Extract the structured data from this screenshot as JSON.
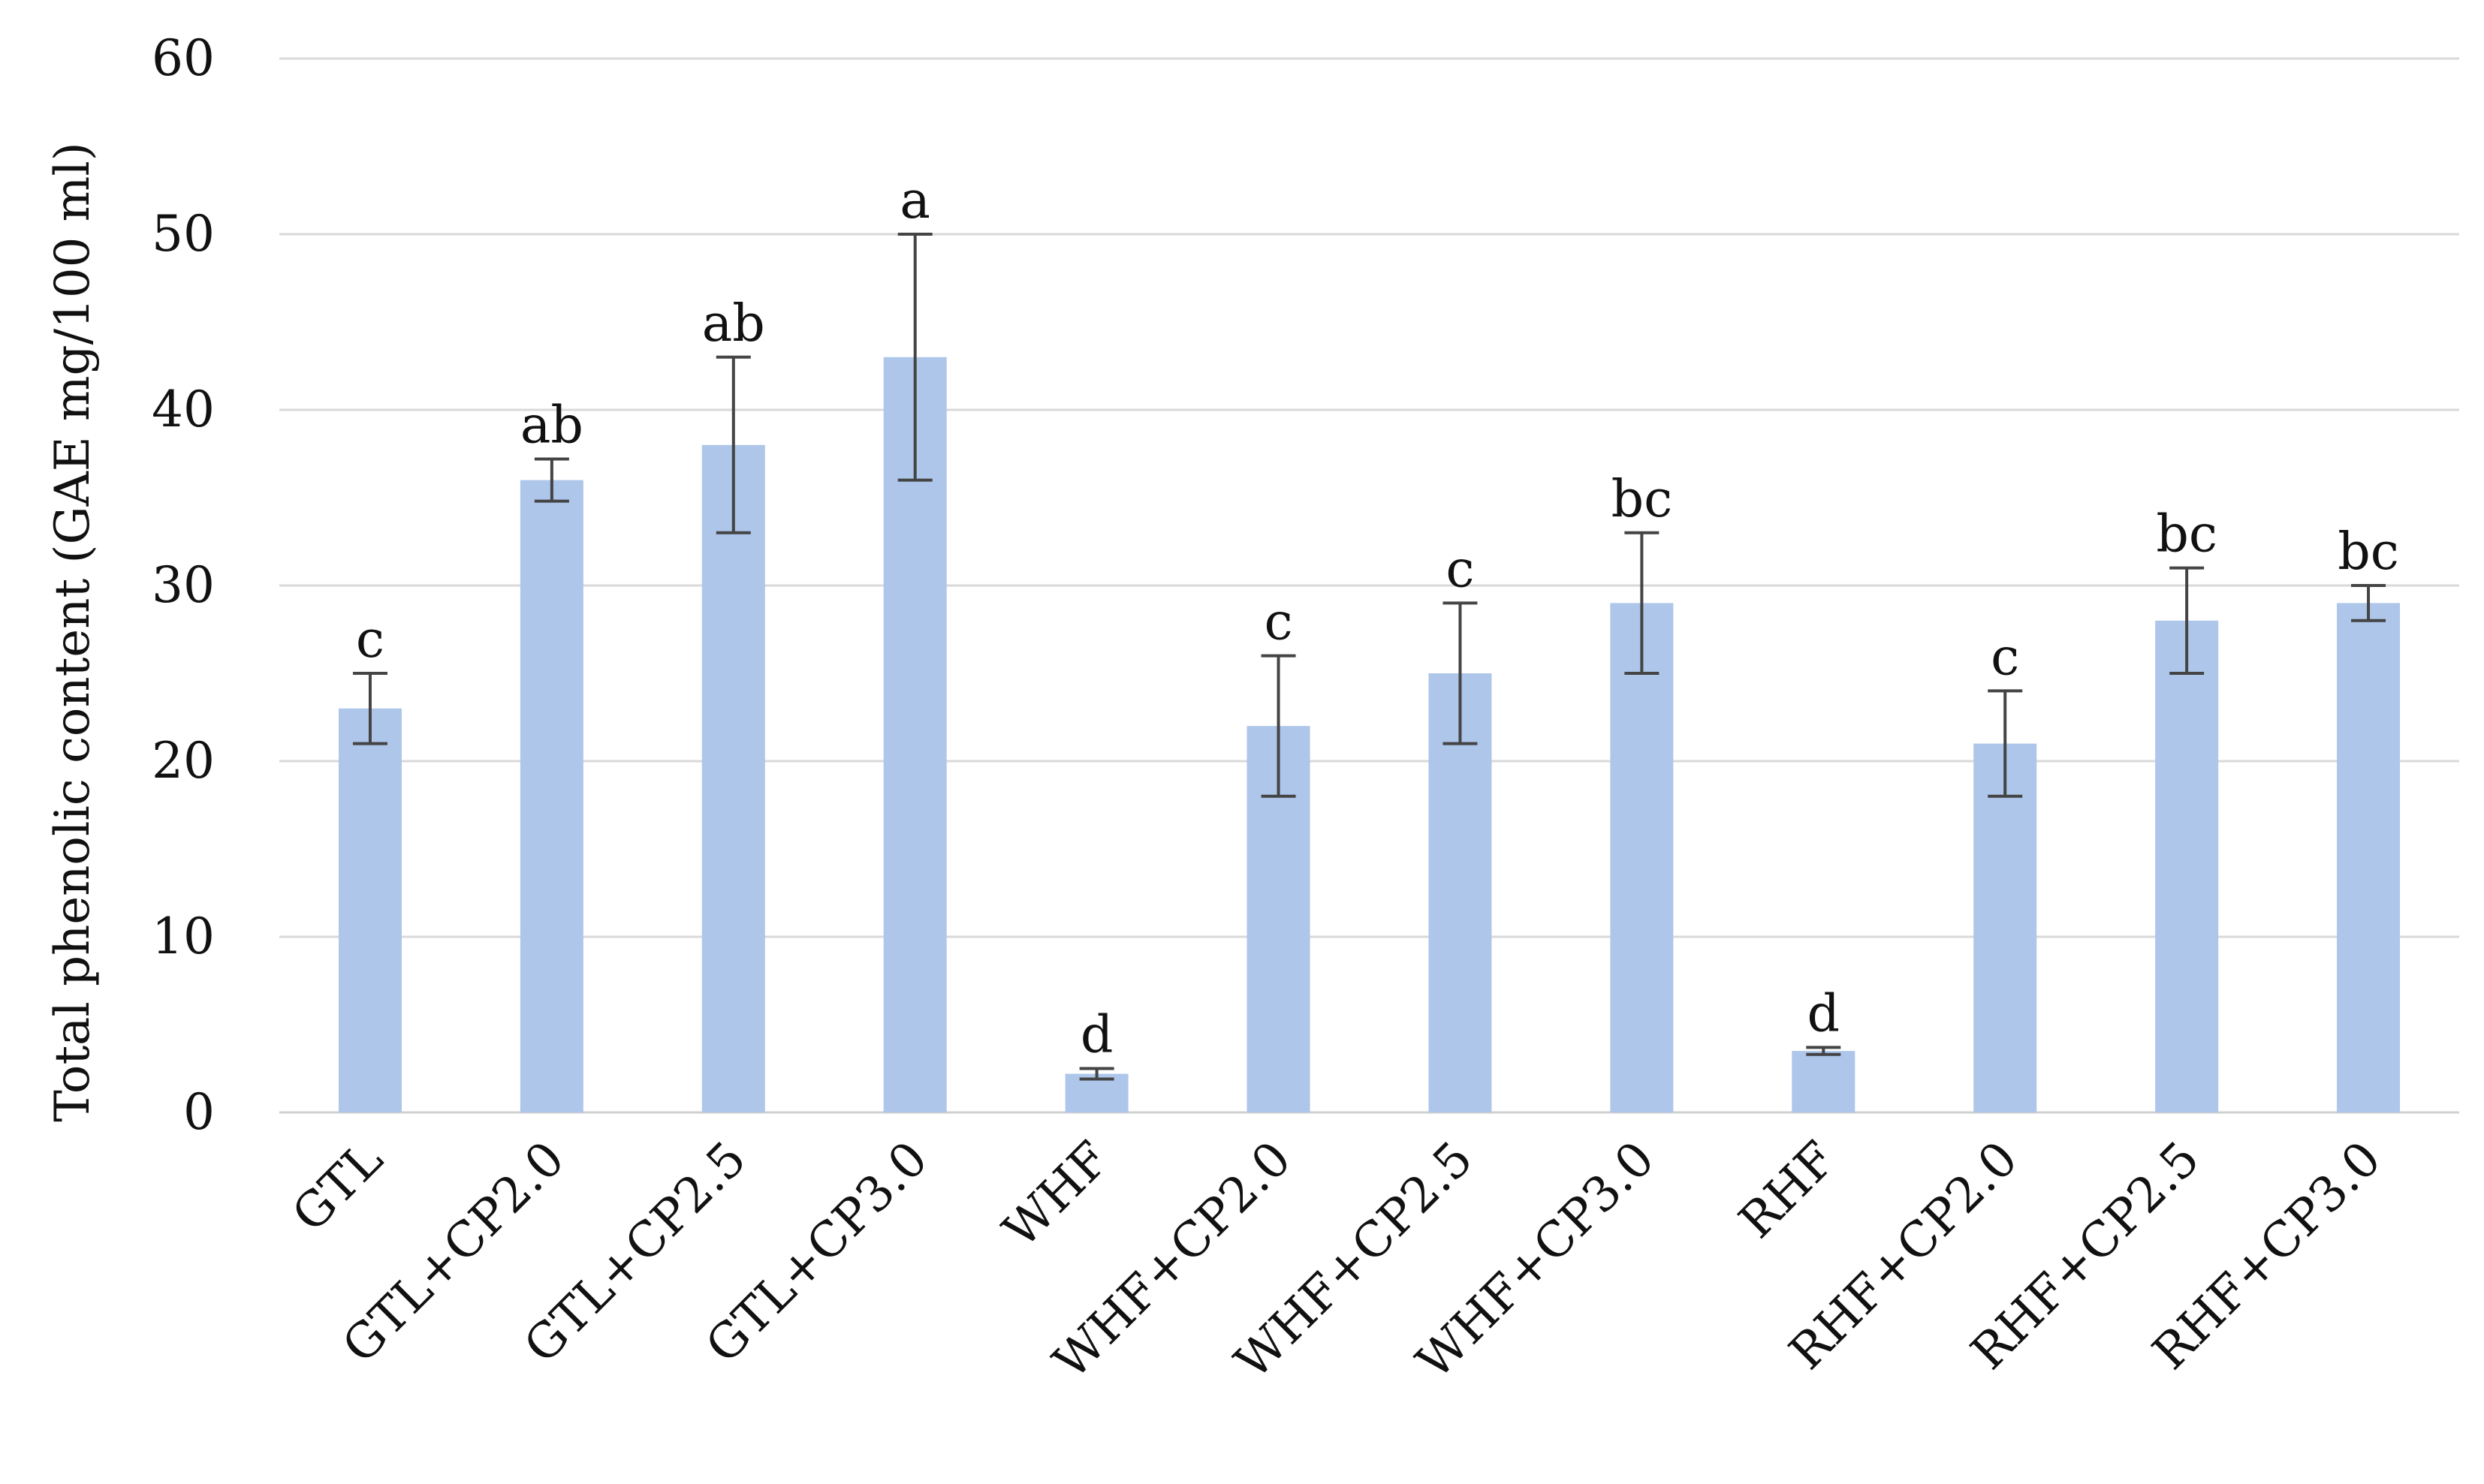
{
  "chart_data": {
    "type": "bar",
    "title": "",
    "xlabel": "",
    "ylabel": "Total phenolic content (GAE mg/100 ml)",
    "ylim": [
      0,
      60
    ],
    "yticks": [
      0,
      10,
      20,
      30,
      40,
      50,
      60
    ],
    "grid": true,
    "legend": "none",
    "bar_color": "#adc6ea",
    "error_bar_color": "#444444",
    "categories": [
      "GTL",
      "GTL+CP2.0",
      "GTL+CP2.5",
      "GTL+CP3.0",
      "WHF",
      "WHF+CP2.0",
      "WHF+CP2.5",
      "WHF+CP3.0",
      "RHF",
      "RHF+CP2.0",
      "RHF+CP2.5",
      "RHF+CP3.0"
    ],
    "values": [
      23,
      36,
      38,
      43,
      2.2,
      22,
      25,
      29,
      3.5,
      21,
      28,
      29
    ],
    "errors": [
      2,
      1.2,
      5,
      7,
      0.3,
      4,
      4,
      4,
      0.2,
      3,
      3,
      1
    ],
    "significance": [
      "c",
      "ab",
      "ab",
      "a",
      "d",
      "c",
      "c",
      "bc",
      "d",
      "c",
      "bc",
      "bc"
    ]
  }
}
